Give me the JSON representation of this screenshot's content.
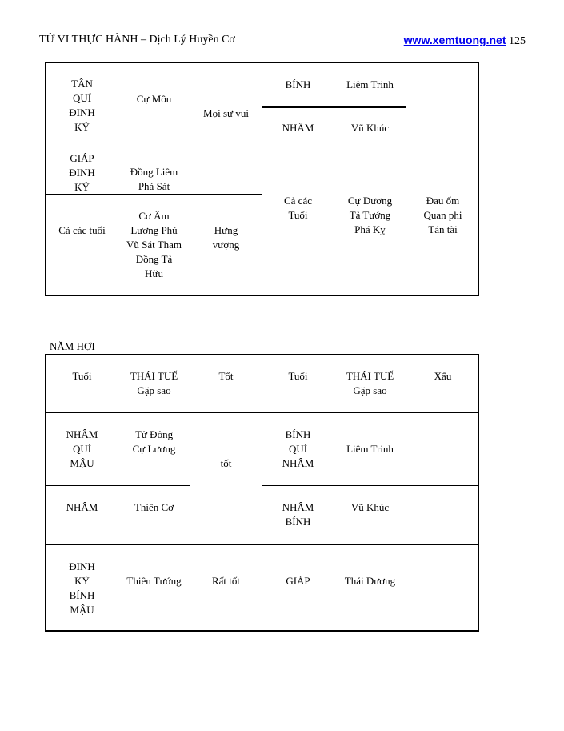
{
  "header": {
    "title": "TỬ VI THỰC HÀNH – Dịch Lý Huyền Cơ",
    "website": "www.xemtuong.net",
    "page_number": "125"
  },
  "table1": {
    "c1": "TÂN\nQUÍ\nĐINH\nKỶ",
    "c2": "Cự Môn",
    "c3": "Mọi sự vui",
    "c4": "BÍNH",
    "c5": "Liêm Trinh",
    "c6": "",
    "c7": "NHÂM",
    "c8": "Vũ Khúc",
    "c9": "GIÁP\nĐINH\nKỶ",
    "c10": "Đồng Liêm\nPhá Sát",
    "c11": "Cả các tuổi",
    "c12": "Cơ Âm\nLương Phủ\nVũ Sát Tham\nĐồng Tả\nHữu",
    "c13": "Hưng\nvượng",
    "c14": "Cả các\nTuổi",
    "c15": "Cự Dương\nTả Tướng\nPhá Kỵ",
    "c16": "Đau ốm\nQuan phi\nTán tài"
  },
  "section_title": "NĂM HỢI",
  "table2": {
    "headers": [
      "Tuổi",
      "THÁI TUẾ\nGặp sao",
      "Tốt",
      "Tuổi",
      "THÁI TUẾ\nGặp sao",
      "Xấu"
    ],
    "r1": [
      "NHÂM\nQUÍ\nMẬU",
      "Tử Đông\nCự Lương",
      "tốt",
      "BÍNH\nQUÍ\nNHÂM",
      "Liêm Trinh",
      ""
    ],
    "r2": [
      "NHÂM",
      "Thiên Cơ",
      "NHÂM\nBÍNH",
      "Vũ Khúc",
      ""
    ],
    "r3": [
      "ĐINH\nKỶ\nBÍNH\nMẬU",
      "Thiên Tướng",
      "Rất tốt",
      "GIÁP",
      "Thái Dương",
      ""
    ]
  }
}
